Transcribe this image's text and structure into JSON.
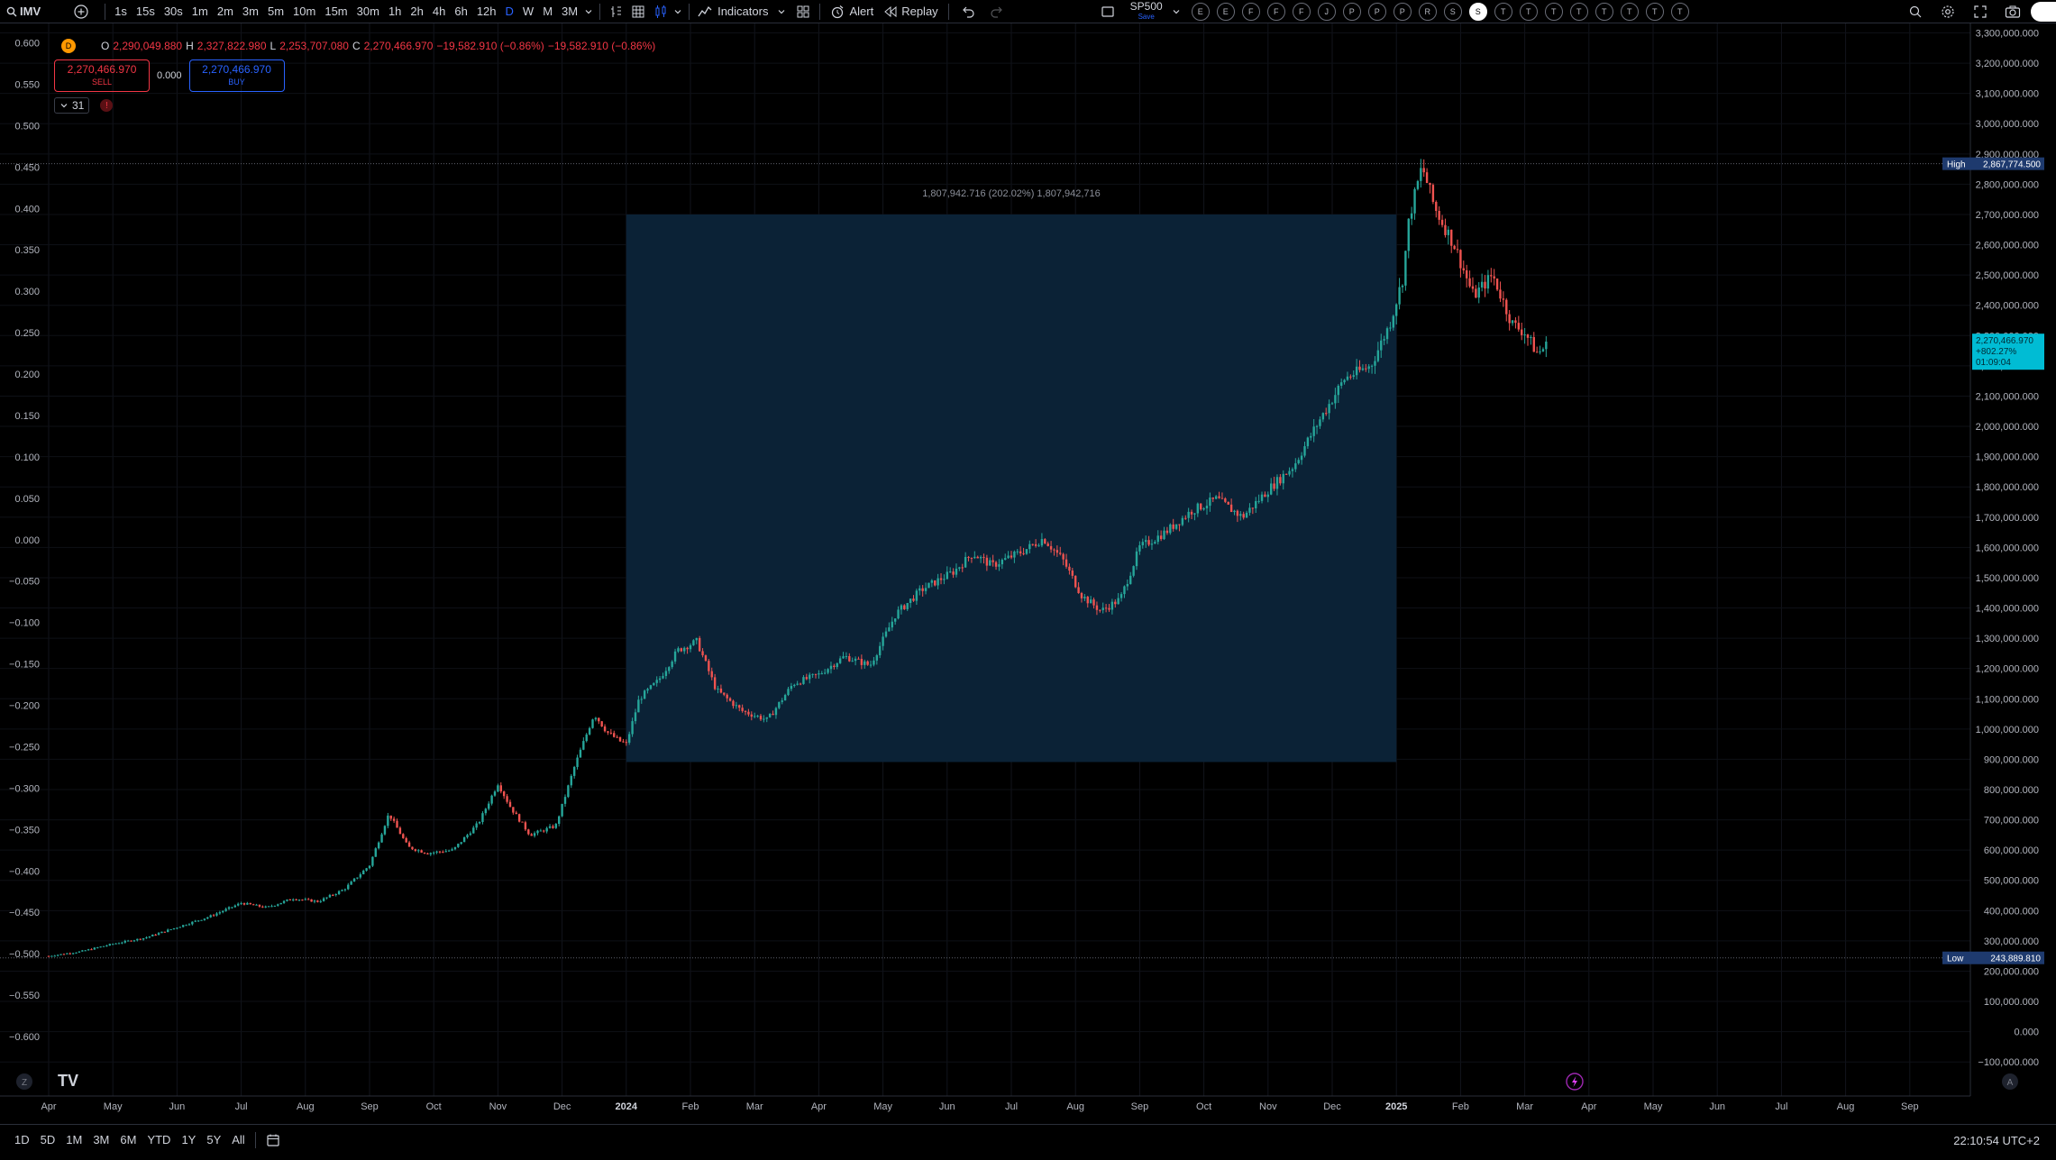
{
  "toolbar": {
    "symbol": "IMV",
    "intervals": [
      "1s",
      "15s",
      "30s",
      "1m",
      "2m",
      "3m",
      "5m",
      "10m",
      "15m",
      "30m",
      "1h",
      "2h",
      "4h",
      "6h",
      "12h",
      "D",
      "W",
      "M",
      "3M"
    ],
    "active_interval": "D",
    "indicators_label": "Indicators",
    "alert_label": "Alert",
    "replay_label": "Replay",
    "watch_symbol": "SP500",
    "watch_sub": "Save",
    "symbol_circles": [
      "E",
      "E",
      "F",
      "F",
      "F",
      "J",
      "P",
      "P",
      "P",
      "R",
      "S",
      "S",
      "T",
      "T",
      "T",
      "T",
      "T",
      "T",
      "T",
      "T"
    ],
    "active_circle_index": 11
  },
  "legend": {
    "badge": "D",
    "o_label": "O",
    "o": "2,290,049.880",
    "h_label": "H",
    "h": "2,327,822.980",
    "l_label": "L",
    "l": "2,253,707.080",
    "c_label": "C",
    "c": "2,270,466.970",
    "change": "−19,582.910 (−0.86%)",
    "change2": "−19,582.910 (−0.86%)"
  },
  "trade": {
    "sell_price": "2,270,466.970",
    "sell_label": "SELL",
    "spread": "0.000",
    "buy_price": "2,270,466.970",
    "buy_label": "BUY"
  },
  "counter": {
    "value": "31",
    "alert_glyph": "!"
  },
  "colors": {
    "up": "#26a69a",
    "down": "#ef5350",
    "box": "#0b2236",
    "price_tag": "#00bcd4",
    "high_low_tag": "#1e3a6e"
  },
  "chart_data": {
    "type": "candlestick",
    "symbol": "IMV",
    "timeframe": "D",
    "left_axis_ticks": [
      "0.600",
      "0.550",
      "0.500",
      "0.450",
      "0.400",
      "0.350",
      "0.300",
      "0.250",
      "0.200",
      "0.150",
      "0.100",
      "0.050",
      "0.000",
      "−0.050",
      "−0.100",
      "−0.150",
      "−0.200",
      "−0.250",
      "−0.300",
      "−0.350",
      "−0.400",
      "−0.450",
      "−0.500",
      "−0.550",
      "−0.600"
    ],
    "right_axis_ticks": [
      "3,300,000.000",
      "3,200,000.000",
      "3,100,000.000",
      "3,000,000.000",
      "2,900,000.000",
      "2,800,000.000",
      "2,700,000.000",
      "2,600,000.000",
      "2,500,000.000",
      "2,400,000.000",
      "2,300,000.000",
      "2,200,000.000",
      "2,100,000.000",
      "2,000,000.000",
      "1,900,000.000",
      "1,800,000.000",
      "1,700,000.000",
      "1,600,000.000",
      "1,500,000.000",
      "1,400,000.000",
      "1,300,000.000",
      "1,200,000.000",
      "1,100,000.000",
      "1,000,000.000",
      "900,000.000",
      "800,000.000",
      "700,000.000",
      "600,000.000",
      "500,000.000",
      "400,000.000",
      "300,000.000",
      "200,000.000",
      "100,000.000",
      "0.000",
      "−100,000.000"
    ],
    "right_ylim": [
      -140000,
      3360000
    ],
    "x_ticks": [
      "Apr",
      "May",
      "Jun",
      "Jul",
      "Aug",
      "Sep",
      "Oct",
      "Nov",
      "Dec",
      "2024",
      "Feb",
      "Mar",
      "Apr",
      "May",
      "Jun",
      "Jul",
      "Aug",
      "Sep",
      "Oct",
      "Nov",
      "Dec",
      "2025",
      "Feb",
      "Mar",
      "Apr",
      "May",
      "Jun",
      "Jul",
      "Aug",
      "Sep"
    ],
    "x_tick_months_index": [
      0,
      1,
      2,
      3,
      4,
      5,
      6,
      7,
      8,
      9,
      10,
      11,
      12,
      13,
      14,
      15,
      16,
      17,
      18,
      19,
      20,
      21,
      22,
      23,
      24,
      25,
      26,
      27,
      28,
      29
    ],
    "price_path": [
      [
        0,
        250000
      ],
      [
        0.5,
        265000
      ],
      [
        1,
        290000
      ],
      [
        1.5,
        310000
      ],
      [
        2,
        345000
      ],
      [
        2.5,
        380000
      ],
      [
        3,
        425000
      ],
      [
        3.4,
        410000
      ],
      [
        3.8,
        440000
      ],
      [
        4.2,
        430000
      ],
      [
        4.6,
        470000
      ],
      [
        5,
        550000
      ],
      [
        5.3,
        720000
      ],
      [
        5.6,
        610000
      ],
      [
        5.9,
        590000
      ],
      [
        6.3,
        600000
      ],
      [
        6.7,
        690000
      ],
      [
        7,
        820000
      ],
      [
        7.2,
        740000
      ],
      [
        7.5,
        650000
      ],
      [
        7.9,
        680000
      ],
      [
        8.2,
        880000
      ],
      [
        8.5,
        1050000
      ],
      [
        8.7,
        990000
      ],
      [
        8.9,
        960000
      ],
      [
        9,
        950000
      ],
      [
        9.2,
        1100000
      ],
      [
        9.5,
        1160000
      ],
      [
        9.8,
        1260000
      ],
      [
        10.1,
        1290000
      ],
      [
        10.4,
        1130000
      ],
      [
        10.8,
        1060000
      ],
      [
        11.2,
        1030000
      ],
      [
        11.6,
        1150000
      ],
      [
        12,
        1180000
      ],
      [
        12.4,
        1240000
      ],
      [
        12.8,
        1210000
      ],
      [
        13.2,
        1380000
      ],
      [
        13.6,
        1460000
      ],
      [
        14.1,
        1520000
      ],
      [
        14.4,
        1580000
      ],
      [
        14.7,
        1540000
      ],
      [
        15.2,
        1590000
      ],
      [
        15.5,
        1630000
      ],
      [
        15.8,
        1560000
      ],
      [
        16.1,
        1440000
      ],
      [
        16.4,
        1390000
      ],
      [
        16.7,
        1430000
      ],
      [
        17,
        1600000
      ],
      [
        17.4,
        1650000
      ],
      [
        17.8,
        1720000
      ],
      [
        18.2,
        1760000
      ],
      [
        18.6,
        1700000
      ],
      [
        19,
        1790000
      ],
      [
        19.4,
        1870000
      ],
      [
        19.8,
        2020000
      ],
      [
        20.2,
        2160000
      ],
      [
        20.6,
        2200000
      ],
      [
        20.9,
        2340000
      ],
      [
        21.1,
        2490000
      ],
      [
        21.2,
        2690000
      ],
      [
        21.4,
        2860000
      ],
      [
        21.6,
        2720000
      ],
      [
        21.9,
        2600000
      ],
      [
        22.2,
        2430000
      ],
      [
        22.5,
        2500000
      ],
      [
        22.8,
        2340000
      ],
      [
        23.0,
        2310000
      ],
      [
        23.2,
        2240000
      ],
      [
        23.35,
        2270000
      ]
    ],
    "high": {
      "label": "High",
      "value": "2,867,774.500"
    },
    "low": {
      "label": "Low",
      "value": "243,889.810"
    },
    "last": {
      "price": "2,270,466.970",
      "change": "+802.27%",
      "countdown": "01:09:04"
    },
    "range_box": {
      "label": "1,807,942.716 (202.02%) 1,807,942,716",
      "from_value": 891000,
      "to_value": 2700000,
      "from_month": 9.0,
      "to_month": 21.0
    }
  },
  "bottom": {
    "ranges": [
      "1D",
      "5D",
      "1M",
      "3M",
      "6M",
      "YTD",
      "1Y",
      "5Y",
      "All"
    ],
    "clock": "22:10:54 UTC+2"
  },
  "logo_text": "TV"
}
